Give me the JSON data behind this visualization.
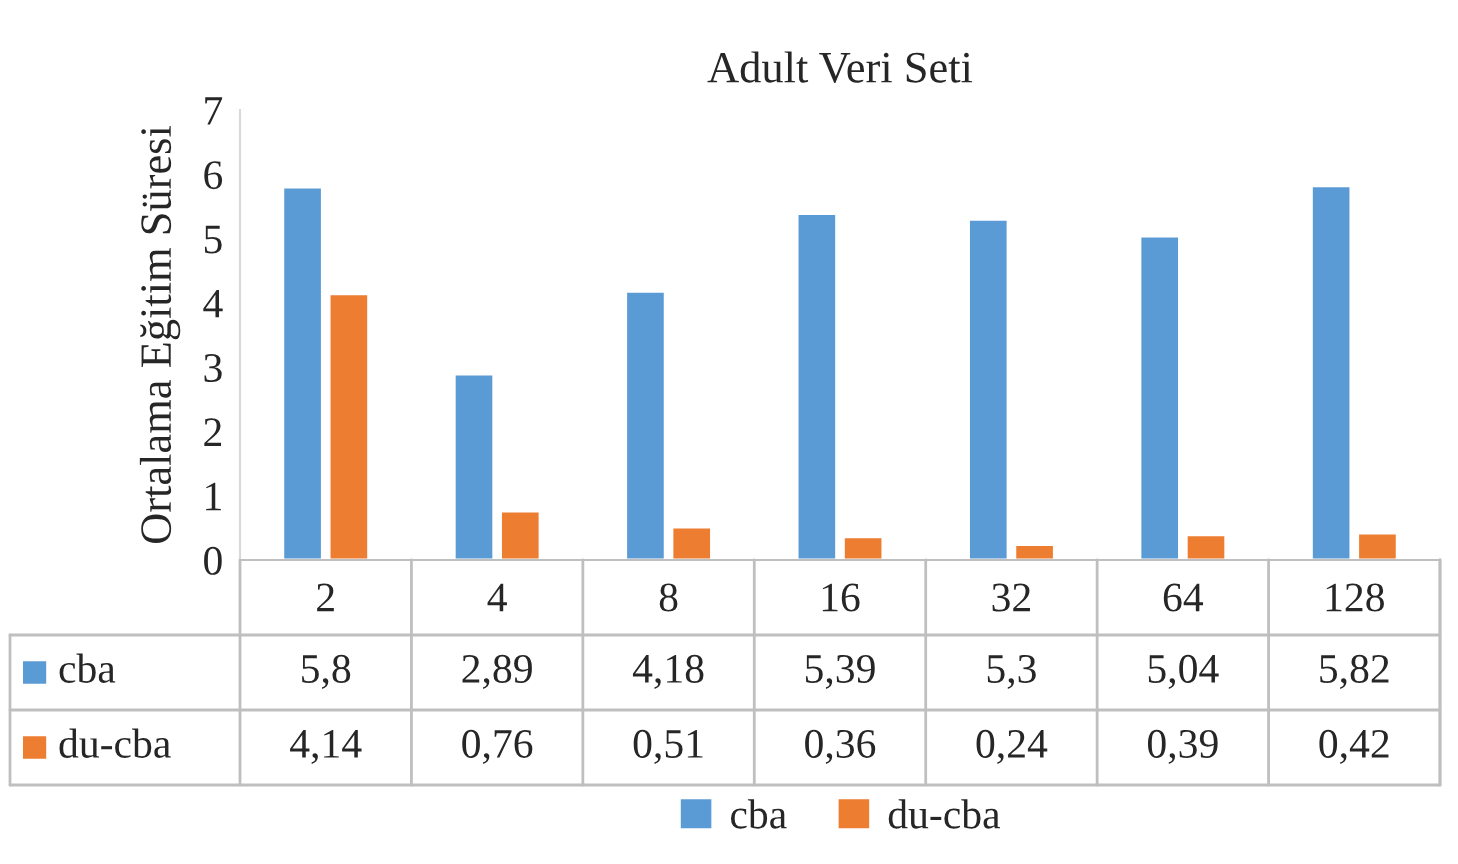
{
  "chart_data": {
    "type": "bar",
    "title": "Adult Veri Seti",
    "ylabel": "Ortalama Eğitim Süresi",
    "categories": [
      "2",
      "4",
      "8",
      "16",
      "32",
      "64",
      "128"
    ],
    "series": [
      {
        "name": "cba",
        "color": "#5b9bd5",
        "values": [
          5.8,
          2.89,
          4.18,
          5.39,
          5.3,
          5.04,
          5.82
        ],
        "value_labels": [
          "5,8",
          "2,89",
          "4,18",
          "5,39",
          "5,3",
          "5,04",
          "5,82"
        ]
      },
      {
        "name": "du-cba",
        "color": "#ed7d31",
        "values": [
          4.14,
          0.76,
          0.51,
          0.36,
          0.24,
          0.39,
          0.42
        ],
        "value_labels": [
          "4,14",
          "0,76",
          "0,51",
          "0,36",
          "0,24",
          "0,39",
          "0,42"
        ]
      }
    ],
    "ylim": [
      0,
      7
    ],
    "yticks": [
      0,
      1,
      2,
      3,
      4,
      5,
      6,
      7
    ],
    "grid": false,
    "legend": "bottom"
  }
}
